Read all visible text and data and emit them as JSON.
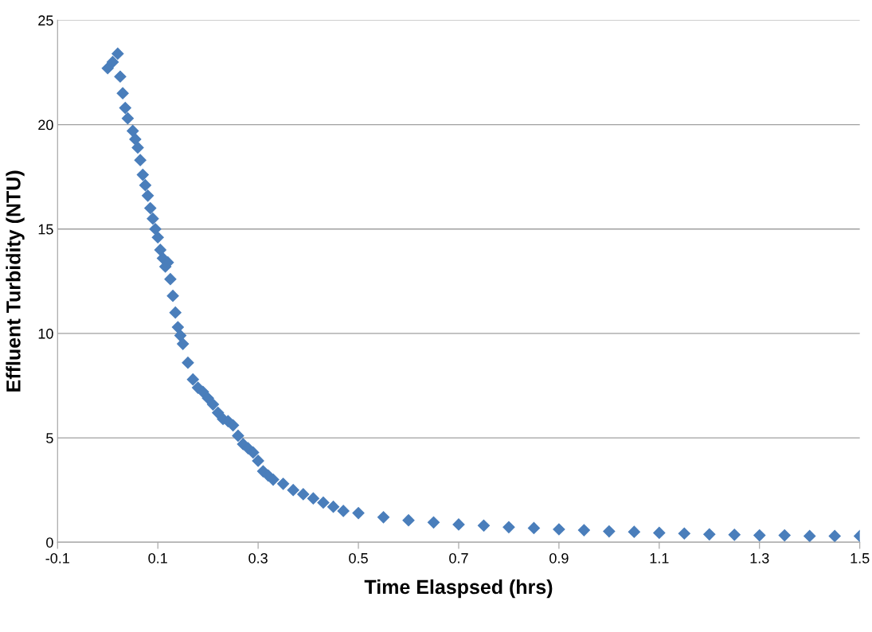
{
  "chart_data": {
    "type": "scatter",
    "xlabel": "Time Elaspsed (hrs)",
    "ylabel": "Effluent Turbidity (NTU)",
    "xlim": [
      -0.1,
      1.5
    ],
    "xticks": [
      -0.1,
      0.1,
      0.3,
      0.5,
      0.7,
      0.9,
      1.1,
      1.3,
      1.5
    ],
    "ylim": [
      0,
      25
    ],
    "yticks": [
      0,
      5,
      10,
      15,
      20,
      25
    ],
    "grid": "y",
    "marker": "diamond",
    "series": [
      {
        "color": "#4a7ebb",
        "x": [
          0.0,
          0.01,
          0.02,
          0.025,
          0.03,
          0.035,
          0.04,
          0.05,
          0.055,
          0.06,
          0.065,
          0.07,
          0.075,
          0.08,
          0.085,
          0.09,
          0.095,
          0.1,
          0.105,
          0.11,
          0.115,
          0.12,
          0.125,
          0.13,
          0.135,
          0.14,
          0.145,
          0.15,
          0.16,
          0.17,
          0.18,
          0.19,
          0.2,
          0.21,
          0.22,
          0.23,
          0.24,
          0.25,
          0.26,
          0.27,
          0.28,
          0.29,
          0.3,
          0.31,
          0.32,
          0.33,
          0.35,
          0.37,
          0.39,
          0.41,
          0.43,
          0.45,
          0.47,
          0.5,
          0.55,
          0.6,
          0.65,
          0.7,
          0.75,
          0.8,
          0.85,
          0.9,
          0.95,
          1.0,
          1.05,
          1.1,
          1.15,
          1.2,
          1.25,
          1.3,
          1.35,
          1.4,
          1.45,
          1.5
        ],
        "values": [
          22.7,
          23.0,
          23.4,
          22.3,
          21.5,
          20.8,
          20.3,
          19.7,
          19.3,
          18.9,
          18.3,
          17.6,
          17.1,
          16.6,
          16.0,
          15.5,
          15.0,
          14.6,
          14.0,
          13.6,
          13.2,
          13.4,
          12.6,
          11.8,
          11.0,
          10.3,
          9.9,
          9.5,
          8.6,
          7.8,
          7.4,
          7.2,
          6.9,
          6.6,
          6.2,
          5.9,
          5.8,
          5.6,
          5.1,
          4.7,
          4.5,
          4.3,
          3.9,
          3.4,
          3.2,
          3.0,
          2.8,
          2.5,
          2.3,
          2.1,
          1.9,
          1.7,
          1.5,
          1.4,
          1.2,
          1.05,
          0.95,
          0.85,
          0.8,
          0.72,
          0.68,
          0.62,
          0.58,
          0.52,
          0.5,
          0.45,
          0.42,
          0.38,
          0.36,
          0.33,
          0.33,
          0.3,
          0.3,
          0.3
        ]
      }
    ]
  }
}
